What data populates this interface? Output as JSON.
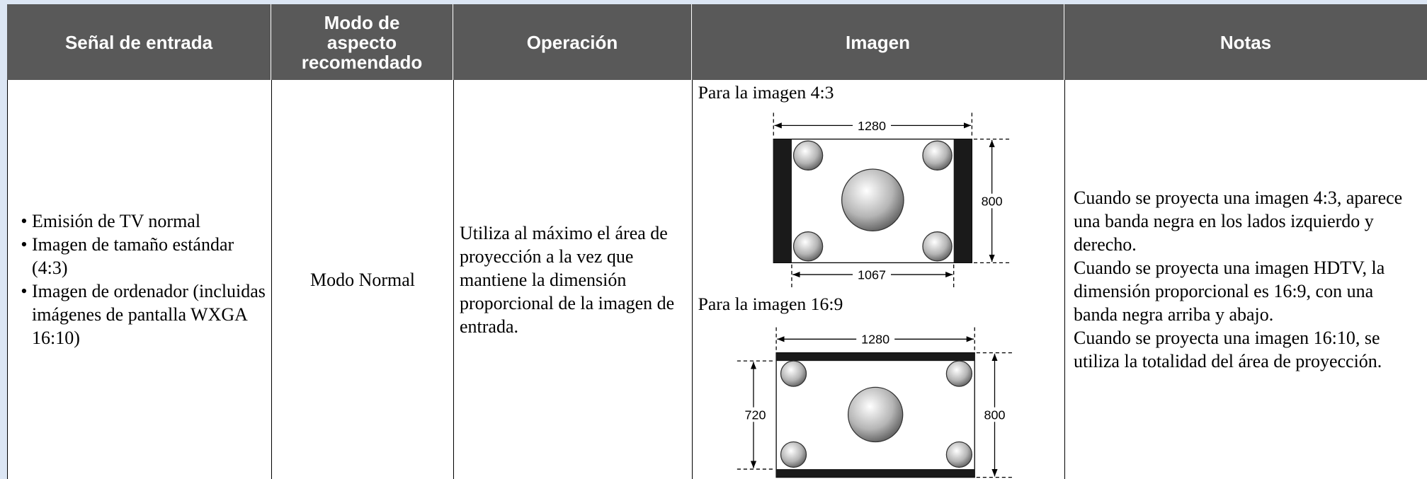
{
  "table": {
    "headers": [
      "Señal de entrada",
      "Modo de aspecto recomendado",
      "Operación",
      "Imagen",
      "Notas"
    ],
    "rows": [
      {
        "signal": [
          "Emisión de TV normal",
          "Imagen de tamaño estándar (4:3)",
          "Imagen de ordenador (incluidas imágenes de pantalla WXGA 16:10)"
        ],
        "mode": "Modo Normal",
        "operation": "Utiliza al máximo el área de proyección a la vez que mantiene la dimensión proporcional de la imagen de entrada.",
        "image": {
          "diagrams": [
            {
              "caption": "Para la imagen 4:3",
              "width_label": "1280",
              "height_label": "800",
              "inner_label": "1067"
            },
            {
              "caption": "Para la imagen 16:9",
              "width_label": "1280",
              "inner_label": "720",
              "height_label": "800"
            }
          ]
        },
        "notes": [
          "Cuando se proyecta una imagen 4:3, aparece una banda negra en los lados izquierdo y derecho.",
          "Cuando se proyecta una imagen HDTV, la dimensión proporcional es 16:9, con una banda negra arriba y abajo.",
          "Cuando se proyecta una imagen 16:10, se utiliza la totalidad del área de proyección."
        ]
      }
    ]
  }
}
